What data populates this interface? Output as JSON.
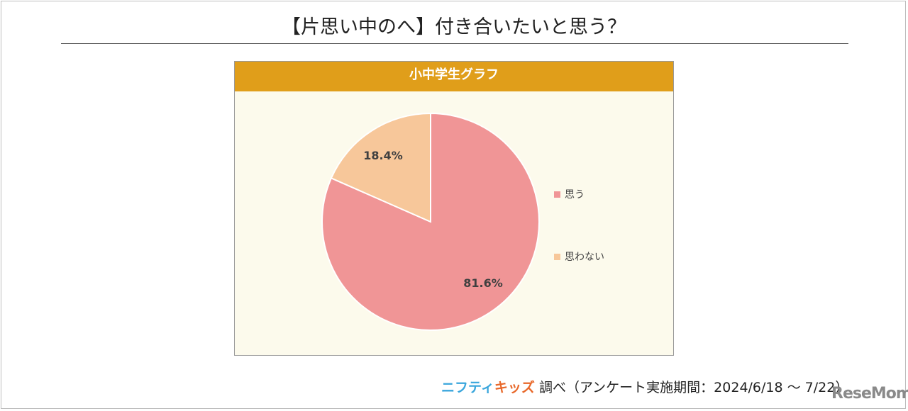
{
  "title": "【片思い中のへ】付き合いたいと思う？",
  "panel_title": "小中学生グラフ",
  "chart_data": {
    "type": "pie",
    "title": "小中学生グラフ",
    "categories": [
      "思う",
      "思わない"
    ],
    "values": [
      81.6,
      18.4
    ],
    "labels": [
      "81.6%",
      "18.4%"
    ],
    "colors": [
      "#f09596",
      "#f7c79a"
    ],
    "legend_position": "right"
  },
  "footer": {
    "brand_a": "ニフティ",
    "brand_b": "キッズ",
    "text": "調べ（アンケート実施期間：2024/6/18 ～ 7/22）"
  },
  "watermark": "ReseMom"
}
